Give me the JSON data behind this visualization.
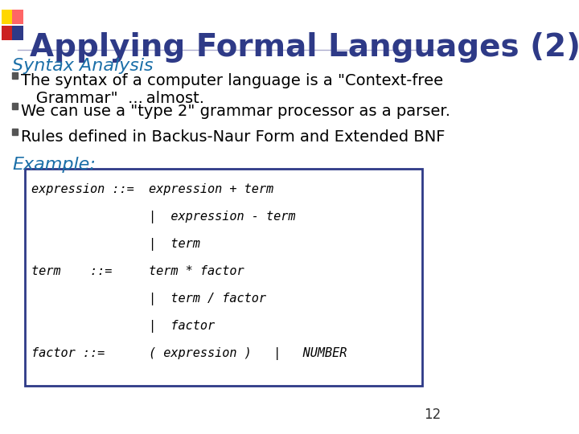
{
  "title": "Applying Formal Languages (2)",
  "title_color": "#2E3A87",
  "title_fontsize": 28,
  "bg_color": "#FFFFFF",
  "subtitle": "Syntax Analysis",
  "subtitle_color": "#1B6FA8",
  "subtitle_fontsize": 16,
  "bullets": [
    "The syntax of a computer language is a \"Context-free\n   Grammar\"  ... almost.",
    "We can use a \"type 2\" grammar processor as a parser.",
    "Rules defined in Backus-Naur Form and Extended BNF"
  ],
  "bullet_color": "#000000",
  "bullet_fontsize": 14,
  "example_label": "Example:",
  "example_color": "#1B6FA8",
  "example_fontsize": 16,
  "code_lines": [
    "expression ::=  expression + term",
    "                |  expression - term",
    "                |  term",
    "term    ::=     term * factor",
    "                |  term / factor",
    "                |  factor",
    "factor ::=      ( expression )   |   NUMBER"
  ],
  "code_color": "#000000",
  "code_fontsize": 11,
  "code_box_color": "#2E3A87",
  "slide_number": "12",
  "accent_colors": [
    "#FFD700",
    "#FF6B6B",
    "#8B0000",
    "#2E3A87"
  ],
  "hline_color": "#AAAACC"
}
